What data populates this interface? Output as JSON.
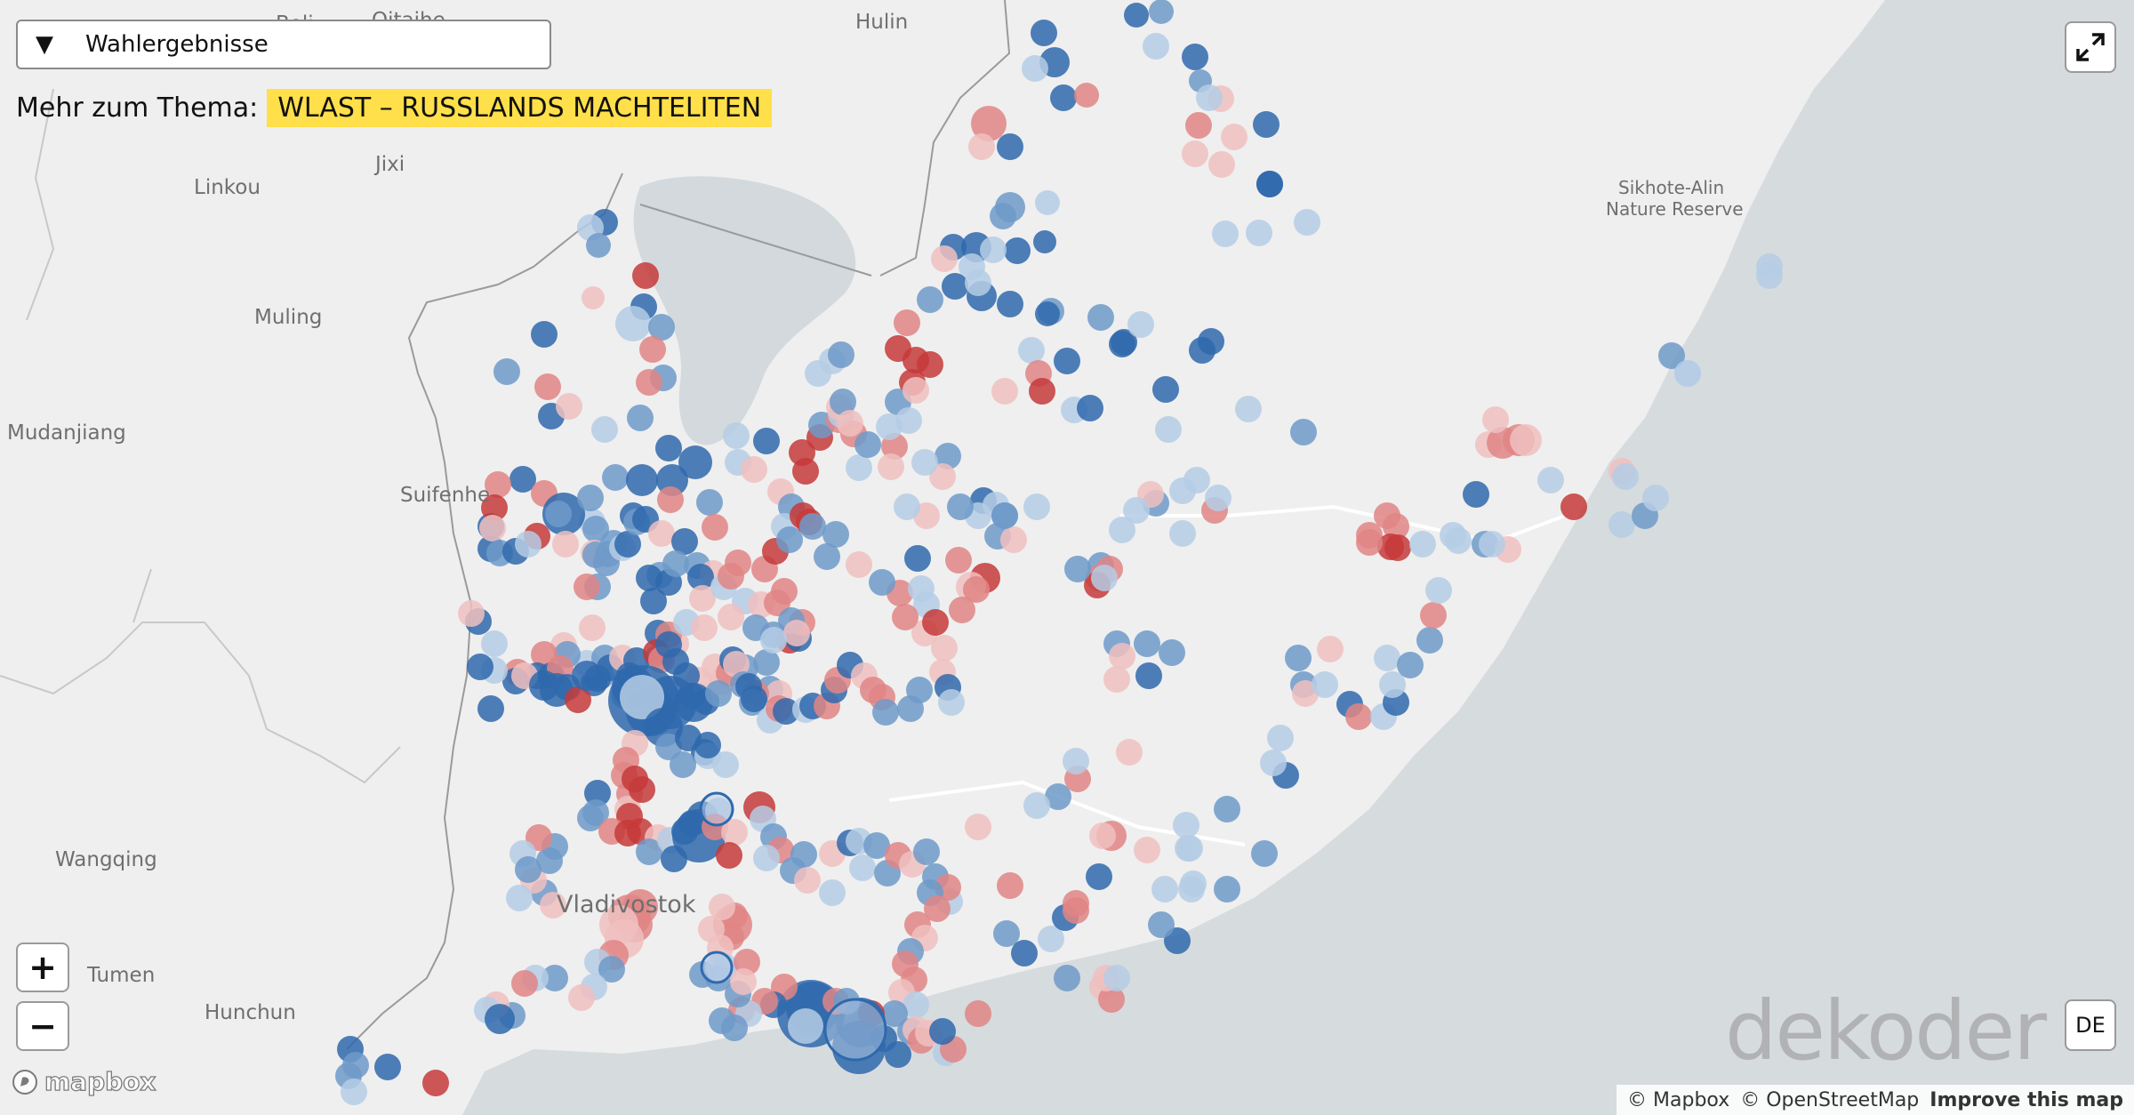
{
  "controls": {
    "dropdown_icon": "triangle-down-icon",
    "dropdown_label": "Wahlergebnisse",
    "more_label": "Mehr zum Thema:",
    "more_link": "WLAST – RUSSLANDS MACHTELITEN",
    "zoom_in": "+",
    "zoom_out": "−",
    "lang": "DE",
    "fullscreen_icon": "expand-icon"
  },
  "branding": {
    "logo_text": "dekoder",
    "mapbox_text": "mapbox"
  },
  "attribution": {
    "mapbox": "© Mapbox",
    "osm": "© OpenStreetMap",
    "improve": "Improve this map"
  },
  "places": [
    {
      "key": "boli",
      "text": "Boli"
    },
    {
      "key": "qitaihe",
      "text": "Qitaihe"
    },
    {
      "key": "hulin",
      "text": "Hulin"
    },
    {
      "key": "jixi",
      "text": "Jixi"
    },
    {
      "key": "linkou",
      "text": "Linkou"
    },
    {
      "key": "muling",
      "text": "Muling"
    },
    {
      "key": "mudanjiang",
      "text": "Mudanjiang"
    },
    {
      "key": "suifenhe",
      "text": "Suifenhe"
    },
    {
      "key": "wangqing",
      "text": "Wangqing"
    },
    {
      "key": "vladivostok",
      "text": "Vladivostok"
    },
    {
      "key": "tumen",
      "text": "Tumen"
    },
    {
      "key": "hunchun",
      "text": "Hunchun"
    },
    {
      "key": "sikhote1",
      "text": "Sikhote-Alin"
    },
    {
      "key": "sikhote2",
      "text": "Nature Reserve"
    }
  ],
  "colors": {
    "land": "#efefef",
    "sea": "#d5dadd",
    "lake": "#d3d9dc",
    "blue_strong": "#2f69ad",
    "blue_mid": "#6f9ac9",
    "blue_light": "#b5cce5",
    "red_strong": "#c53a3a",
    "red_mid": "#e08585",
    "red_light": "#f0c0c0",
    "highlight": "#ffe04a"
  }
}
